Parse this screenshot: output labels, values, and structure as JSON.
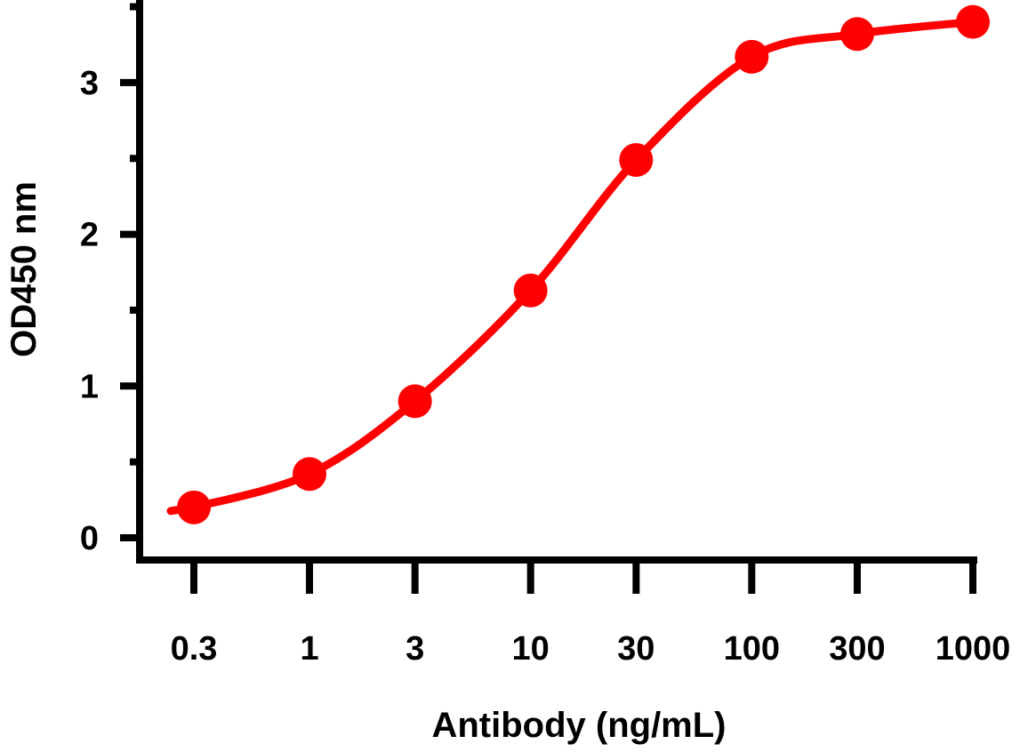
{
  "chart_data": {
    "type": "line",
    "title": "",
    "xlabel": "Antibody (ng/mL)",
    "ylabel": "OD450 nm",
    "x_scale": "log",
    "xlim": [
      0.3,
      1000
    ],
    "ylim": [
      0,
      3.4
    ],
    "x_ticks": [
      0.3,
      1,
      3,
      10,
      30,
      100,
      300,
      1000
    ],
    "x_tick_labels": [
      "0.3",
      "1",
      "3",
      "10",
      "30",
      "100",
      "300",
      "1000"
    ],
    "y_ticks": [
      0,
      1,
      2,
      3
    ],
    "y_tick_labels": [
      "0",
      "1",
      "2",
      "3"
    ],
    "y_minor_ticks": [
      0.5,
      1.5,
      2.5,
      3.5
    ],
    "grid": false,
    "legend": "none",
    "series": [
      {
        "color": "#ff0000",
        "x": [
          0.3,
          1,
          3,
          10,
          30,
          100,
          300,
          1000
        ],
        "y": [
          0.2,
          0.42,
          0.9,
          1.63,
          2.49,
          3.17,
          3.32,
          3.4
        ]
      }
    ]
  }
}
